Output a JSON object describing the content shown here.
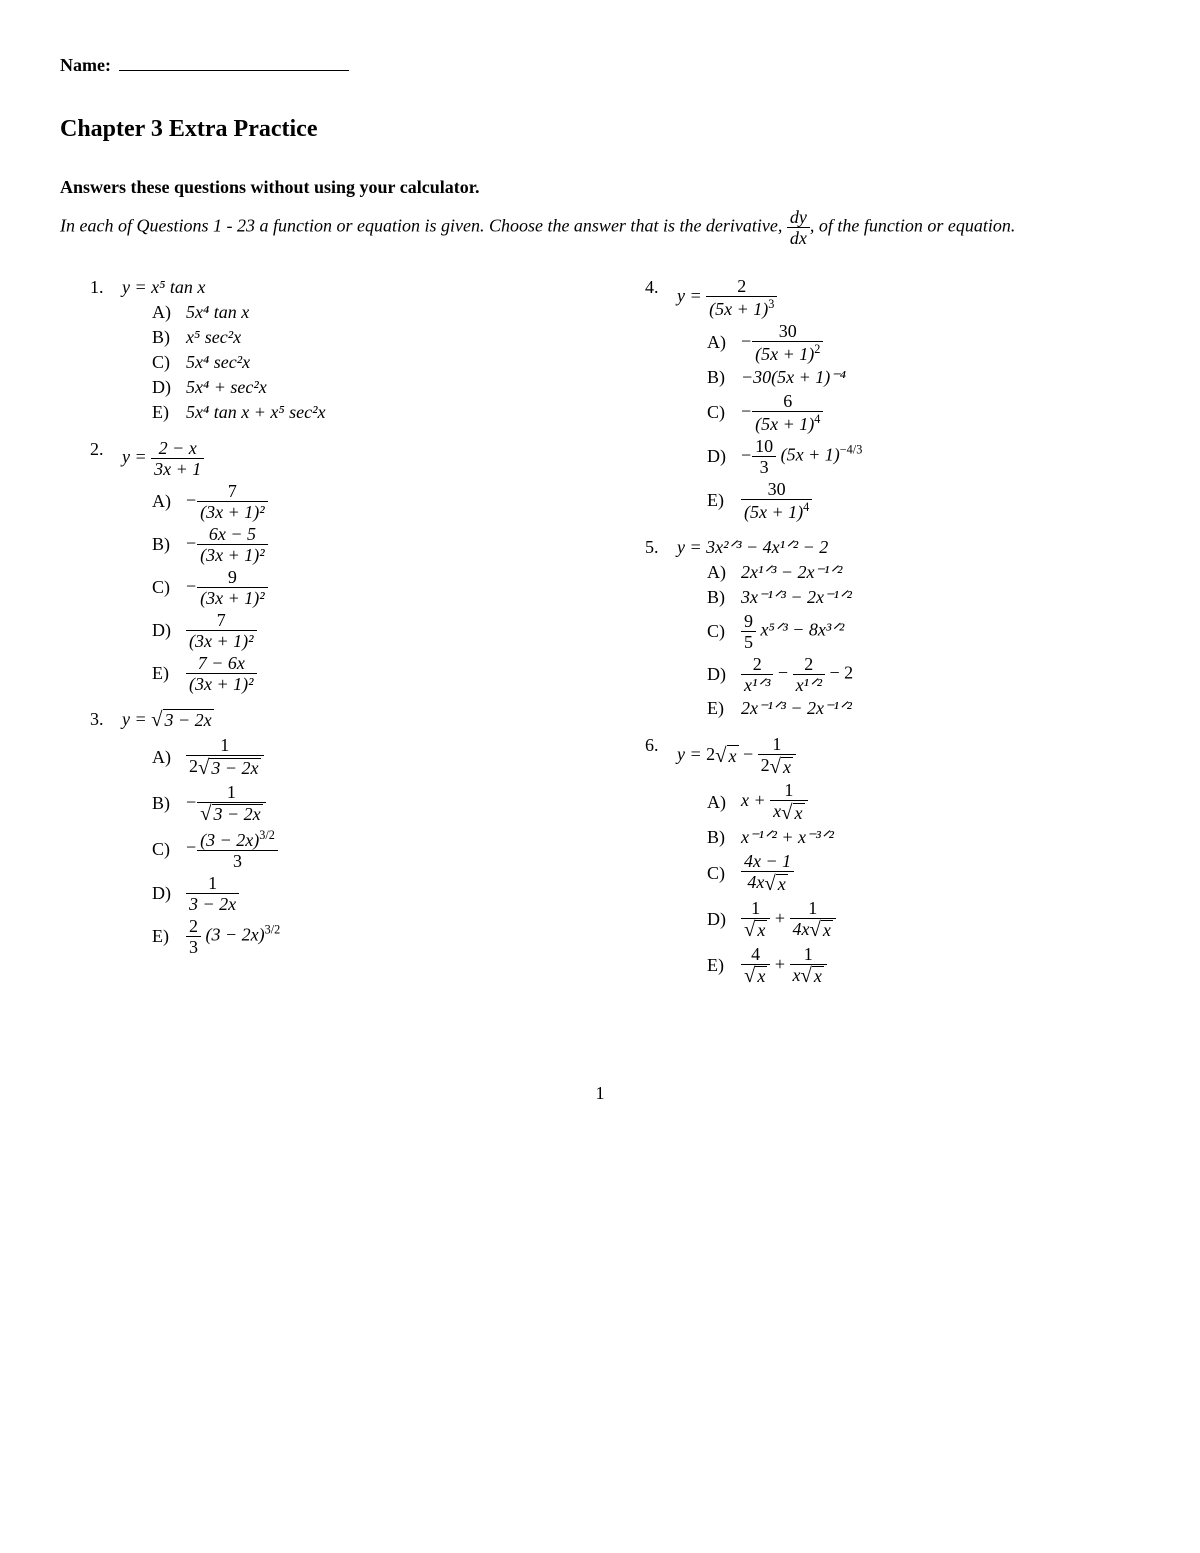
{
  "name_label": "Name:",
  "title": "Chapter 3 Extra Practice",
  "instruction_bold": "Answers these questions without using your calculator.",
  "instruction_italic_1": "In each of Questions 1 - 23 a function or equation is given.  Choose the answer that is the derivative, ",
  "instruction_italic_2": ", of the function or equation.",
  "dy": "dy",
  "dx": "dx",
  "page_number": "1",
  "questions": {
    "q1": {
      "num": "1.",
      "stem": "y = x⁵ tan x",
      "A": "5x⁴ tan x",
      "B": "x⁵ sec²x",
      "C": "5x⁴ sec²x",
      "D": "5x⁴ + sec²x",
      "E": "5x⁴ tan x + x⁵ sec²x"
    },
    "q2": {
      "num": "2.",
      "stem_num": "2 − x",
      "stem_den": "3x + 1",
      "A_num": "7",
      "A_den": "(3x + 1)²",
      "A_sign": "−",
      "B_num": "6x − 5",
      "B_den": "(3x + 1)²",
      "B_sign": "−",
      "C_num": "9",
      "C_den": "(3x + 1)²",
      "C_sign": "−",
      "D_num": "7",
      "D_den": "(3x + 1)²",
      "D_sign": "",
      "E_num": "7 − 6x",
      "E_den": "(3x + 1)²",
      "E_sign": ""
    },
    "q3": {
      "num": "3.",
      "stem_rad": "3 − 2x",
      "A_num": "1",
      "A_den_pre": "2",
      "A_den_rad": "3 − 2x",
      "B_num": "1",
      "B_den_rad": "3 − 2x",
      "B_sign": "−",
      "C_num": "(3 − 2x)",
      "C_num_sup": "3/2",
      "C_den": "3",
      "C_sign": "−",
      "D_num": "1",
      "D_den": "3 − 2x",
      "E_coef_num": "2",
      "E_coef_den": "3",
      "E_base": "(3 − 2x)",
      "E_sup": "3/2"
    },
    "q4": {
      "num": "4.",
      "stem_num": "2",
      "stem_den_base": "(5x + 1)",
      "stem_den_sup": "3",
      "A_num": "30",
      "A_den_base": "(5x + 1)",
      "A_den_sup": "2",
      "A_sign": "−",
      "B": "−30(5x + 1)⁻⁴",
      "C_num": "6",
      "C_den_base": "(5x + 1)",
      "C_den_sup": "4",
      "C_sign": "−",
      "D_coef_num": "10",
      "D_coef_den": "3",
      "D_sign": "−",
      "D_base": "(5x + 1)",
      "D_sup": "−4/3",
      "E_num": "30",
      "E_den_base": "(5x + 1)",
      "E_den_sup": "4"
    },
    "q5": {
      "num": "5.",
      "stem": "y = 3x²ᐟ³ − 4x¹ᐟ² − 2",
      "A": "2x¹ᐟ³ − 2x⁻¹ᐟ²",
      "B": "3x⁻¹ᐟ³ − 2x⁻¹ᐟ²",
      "C_coef_num": "9",
      "C_coef_den": "5",
      "C_rest": "x⁵ᐟ³ − 8x³ᐟ²",
      "D_t1_num": "2",
      "D_t1_den": "x¹ᐟ³",
      "D_t2_num": "2",
      "D_t2_den": "x¹ᐟ²",
      "D_tail": " − 2",
      "E": "2x⁻¹ᐟ³ − 2x⁻¹ᐟ²"
    },
    "q6": {
      "num": "6.",
      "stem_t1_pre": "2",
      "stem_t1_rad": "x",
      "stem_t2_num": "1",
      "stem_t2_den_pre": "2",
      "stem_t2_den_rad": "x",
      "A_t1": "x + ",
      "A_t2_num": "1",
      "A_t2_den_pre": "x",
      "A_t2_den_rad": "x",
      "B": "x⁻¹ᐟ² + x⁻³ᐟ²",
      "C_num": "4x − 1",
      "C_den_pre": "4x",
      "C_den_rad": "x",
      "D_t1_num": "1",
      "D_t1_den_rad": "x",
      "D_t2_num": "1",
      "D_t2_den_pre": "4x",
      "D_t2_den_rad": "x",
      "E_t1_num": "4",
      "E_t1_den_rad": "x",
      "E_t2_num": "1",
      "E_t2_den_pre": "x",
      "E_t2_den_rad": "x"
    }
  },
  "letters": {
    "A": "A)",
    "B": "B)",
    "C": "C)",
    "D": "D)",
    "E": "E)"
  },
  "y_eq": "y = "
}
